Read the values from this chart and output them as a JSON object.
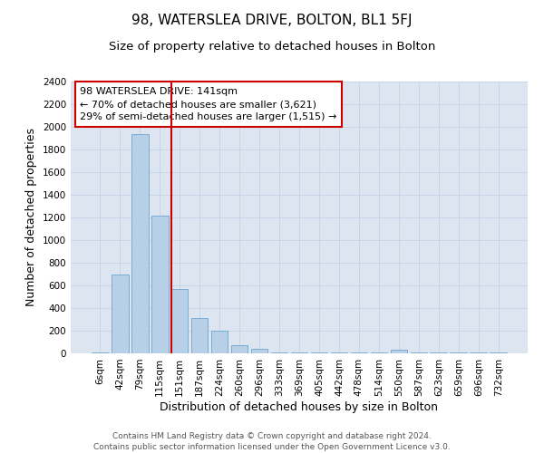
{
  "title_line1": "98, WATERSLEA DRIVE, BOLTON, BL1 5FJ",
  "title_line2": "Size of property relative to detached houses in Bolton",
  "xlabel": "Distribution of detached houses by size in Bolton",
  "ylabel": "Number of detached properties",
  "categories": [
    "6sqm",
    "42sqm",
    "79sqm",
    "115sqm",
    "151sqm",
    "187sqm",
    "224sqm",
    "260sqm",
    "296sqm",
    "333sqm",
    "369sqm",
    "405sqm",
    "442sqm",
    "478sqm",
    "514sqm",
    "550sqm",
    "587sqm",
    "623sqm",
    "659sqm",
    "696sqm",
    "732sqm"
  ],
  "values": [
    5,
    700,
    1940,
    1220,
    570,
    310,
    200,
    70,
    40,
    5,
    5,
    5,
    5,
    5,
    5,
    30,
    5,
    5,
    5,
    5,
    5
  ],
  "bar_color": "#b8cfe8",
  "bar_edge_color": "#7aadd5",
  "vline_position": 3.575,
  "vline_color": "#cc0000",
  "annotation_text": "98 WATERSLEA DRIVE: 141sqm\n← 70% of detached houses are smaller (3,621)\n29% of semi-detached houses are larger (1,515) →",
  "annotation_box_facecolor": "#ffffff",
  "annotation_box_edgecolor": "#cc0000",
  "ylim": [
    0,
    2400
  ],
  "yticks": [
    0,
    200,
    400,
    600,
    800,
    1000,
    1200,
    1400,
    1600,
    1800,
    2000,
    2200,
    2400
  ],
  "grid_color": "#c8d4e8",
  "background_color": "#dde6f0",
  "footer_text": "Contains HM Land Registry data © Crown copyright and database right 2024.\nContains public sector information licensed under the Open Government Licence v3.0.",
  "title1_fontsize": 11,
  "title2_fontsize": 9.5,
  "axis_label_fontsize": 9,
  "tick_fontsize": 7.5,
  "annotation_fontsize": 8,
  "footer_fontsize": 6.5
}
